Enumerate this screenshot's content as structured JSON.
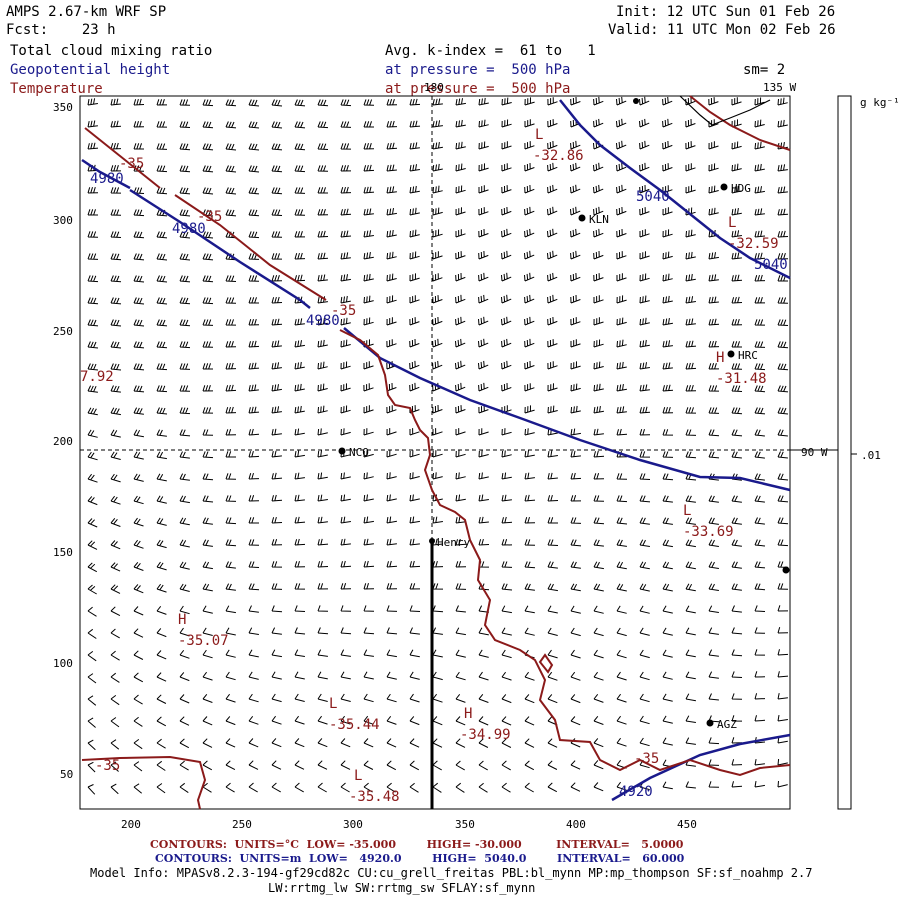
{
  "header": {
    "model": "AMPS 2.67-km WRF SP",
    "fcst": "Fcst:    23 h",
    "init": "Init: 12 UTC Sun 01 Feb 26",
    "valid": "Valid: 11 UTC Mon 02 Feb 26",
    "field1": "Total cloud mixing ratio",
    "field2": "Geopotential height",
    "field3": "Temperature",
    "avg": "Avg. k-index =  61 to   1",
    "press1": "at pressure =  500 hPa",
    "press2": "at pressure =  500 hPa",
    "sm": "sm= 2"
  },
  "map": {
    "axis_x_ticks": [
      "200",
      "250",
      "300",
      "350",
      "400",
      "450"
    ],
    "axis_y_ticks": [
      "350",
      "300",
      "250",
      "200",
      "150",
      "100",
      "50"
    ],
    "meridian_labels": [
      "180",
      "135 W",
      "90 W"
    ],
    "stations": [
      "HDG",
      "KLN",
      "HRC",
      "NCO",
      "Henry",
      "AGZ"
    ],
    "height_labels": [
      "4980",
      "4980",
      "4980",
      "5040",
      "5040",
      "4920"
    ],
    "temp_labels": [
      "-35",
      "-35",
      "-35",
      "-35"
    ],
    "extrema": [
      {
        "sym": "L",
        "val": "-32.86"
      },
      {
        "sym": "L",
        "val": "-32.59"
      },
      {
        "sym": "H",
        "val": "-31.48"
      },
      {
        "sym": "L",
        "val": "-33.69"
      },
      {
        "sym": "H",
        "val": "-35.07"
      },
      {
        "sym": "L",
        "val": "-35.44"
      },
      {
        "sym": "H",
        "val": "-34.99"
      },
      {
        "sym": "L",
        "val": "-35.48"
      }
    ],
    "edge_value": "7.92",
    "colors": {
      "height": "#1a1a8c",
      "temperature": "#8b1a1a"
    }
  },
  "colorbar": {
    "unit": "g kg⁻¹",
    "tick": ".01"
  },
  "footer": {
    "contours1": "CONTOURS:  UNITS=°C  LOW= -35.000        HIGH= -30.000         INTERVAL=   5.0000",
    "contours2": "CONTOURS:  UNITS=m  LOW=   4920.0        HIGH=  5040.0        INTERVAL=   60.000",
    "model_info": "Model Info: MPASv8.2.3-194-gf29cd82c CU:cu_grell_freitas PBL:bl_mynn MP:mp_thompson SF:sf_noahmp 2.7",
    "model_info2": "LW:rrtmg_lw SW:rrtmg_sw SFLAY:sf_mynn"
  }
}
